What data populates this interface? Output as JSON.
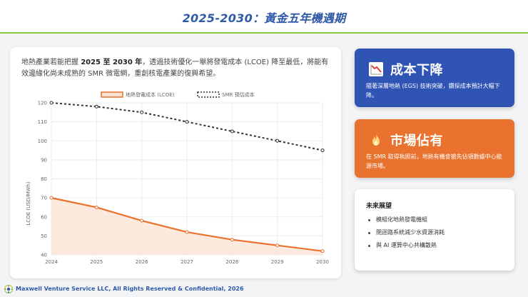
{
  "header": {
    "title": "2025-2030：黃金五年機遇期"
  },
  "intro": {
    "part1": "地熱產業若能把握 ",
    "bold": "2025 至 2030 年",
    "part2": "，透過技術優化一舉將發電成本 (LCOE) 降至最低，將能有效邊緣化尚未成熟的 SMR 微電網，重創核電產業的復興希望。"
  },
  "chart_data": {
    "type": "line",
    "x": [
      2024,
      2025,
      2026,
      2027,
      2028,
      2029,
      2030
    ],
    "series": [
      {
        "name": "地熱發電成本 (LCOE)",
        "values": [
          70,
          65,
          58,
          52,
          48,
          45,
          42
        ],
        "style": "solid-area",
        "color": "#e8722e"
      },
      {
        "name": "SMR 預估成本",
        "values": [
          120,
          118,
          115,
          110,
          105,
          100,
          95
        ],
        "style": "dotted",
        "color": "#333333"
      }
    ],
    "ylabel": "LCOE (USD/MWh)",
    "xlabel": "",
    "ylim": [
      40,
      120
    ],
    "yticks": [
      40,
      50,
      60,
      70,
      80,
      90,
      100,
      110,
      120
    ],
    "grid": true,
    "legend": "top"
  },
  "cards": {
    "cost": {
      "icon": "chart-down-icon",
      "title": "成本下降",
      "desc": "隨著深層地熱 (EGS) 技術突破，鑽探成本預計大幅下降。",
      "color": "#2f54b4"
    },
    "market": {
      "icon": "flame-icon",
      "title": "市場佔有",
      "desc": "在 SMR 取得執照前，地熱有機會搶先佔領數據中心能源市場。",
      "color": "#e8722e"
    },
    "outlook": {
      "title": "未來展望",
      "items": [
        "模組化地熱發電機組",
        "閉迴路系統減少水資源消耗",
        "與 AI 運算中心共構散熱"
      ]
    }
  },
  "footer": {
    "text": "Maxwell Venture Service LLC, All Rights Reserved & Confidential, 2026"
  }
}
